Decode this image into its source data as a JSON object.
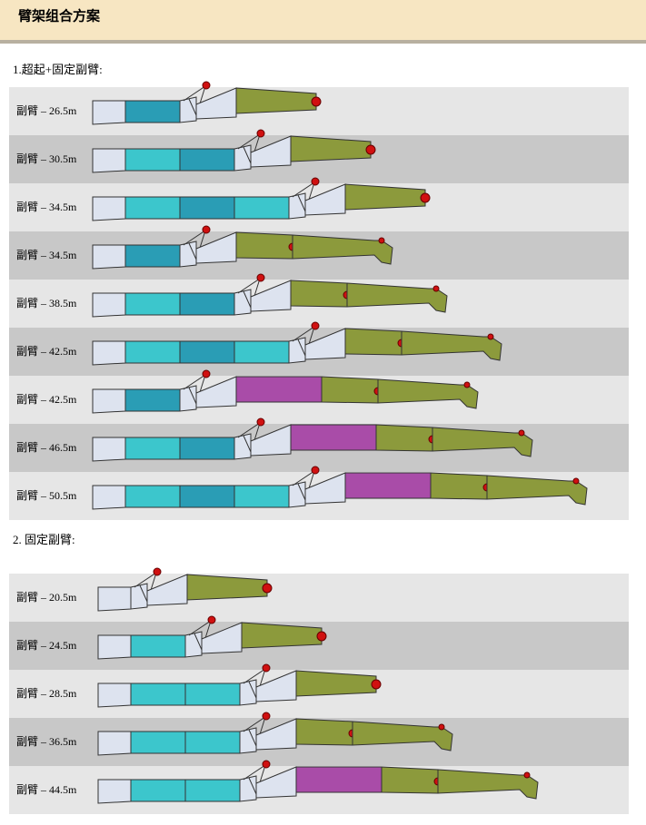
{
  "header": {
    "title": "臂架组合方案"
  },
  "sections": [
    {
      "title": "1.超起+固定副臂:",
      "rows": [
        "副臂 – 26.5m",
        "副臂 – 30.5m",
        "副臂 – 34.5m",
        "副臂 – 34.5m",
        "副臂 – 38.5m",
        "副臂 – 42.5m",
        "副臂 – 42.5m",
        "副臂 – 46.5m",
        "副臂 – 50.5m"
      ]
    },
    {
      "title": "2. 固定副臂:",
      "rows": [
        "副臂 – 20.5m",
        "副臂 – 24.5m",
        "副臂 – 28.5m",
        "副臂 – 36.5m",
        "副臂 – 44.5m"
      ]
    }
  ]
}
